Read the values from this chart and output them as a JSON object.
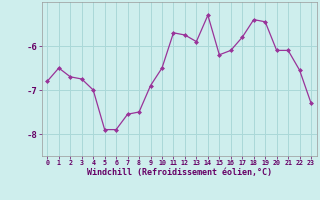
{
  "x": [
    0,
    1,
    2,
    3,
    4,
    5,
    6,
    7,
    8,
    9,
    10,
    11,
    12,
    13,
    14,
    15,
    16,
    17,
    18,
    19,
    20,
    21,
    22,
    23
  ],
  "y": [
    -6.8,
    -6.5,
    -6.7,
    -6.75,
    -7.0,
    -7.9,
    -7.9,
    -7.55,
    -7.5,
    -6.9,
    -6.5,
    -5.7,
    -5.75,
    -5.9,
    -5.3,
    -6.2,
    -6.1,
    -5.8,
    -5.4,
    -5.45,
    -6.1,
    -6.1,
    -6.55,
    -7.3
  ],
  "line_color": "#993399",
  "marker": "D",
  "marker_size": 2,
  "bg_color": "#ceeeed",
  "grid_color": "#aad8d8",
  "xlabel": "Windchill (Refroidissement éolien,°C)",
  "xlabel_color": "#660066",
  "tick_color": "#660066",
  "ylim": [
    -8.5,
    -5.0
  ],
  "yticks": [
    -8,
    -7,
    -6
  ],
  "xlim": [
    -0.5,
    23.5
  ]
}
